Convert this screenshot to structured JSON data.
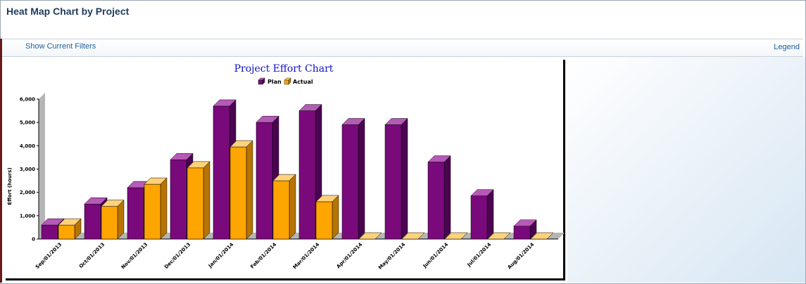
{
  "page": {
    "title": "Heat Map Chart by Project",
    "show_filters_label": "Show Current Filters",
    "legend_label": "Legend"
  },
  "colors": {
    "plan": "#7a0a7c",
    "actual": "#ffa500",
    "title": "#1010c8",
    "link": "#1b5e9c"
  },
  "chart_data": {
    "type": "bar",
    "title": "Project Effort Chart",
    "xlabel": "",
    "ylabel": "Effort (hours)",
    "ylim": [
      0,
      6000
    ],
    "yticks": [
      "0",
      "1,000",
      "2,000",
      "3,000",
      "4,000",
      "5,000",
      "6,000"
    ],
    "legend_position": "top-center",
    "grid": false,
    "categories": [
      "Sep/01/2013",
      "Oct/01/2013",
      "Nov/01/2013",
      "Dec/01/2013",
      "Jan/01/2014",
      "Feb/01/2014",
      "Mar/01/2014",
      "Apr/01/2014",
      "May/01/2014",
      "Jun/01/2014",
      "Jul/01/2014",
      "Aug/01/2014"
    ],
    "series": [
      {
        "name": "Plan",
        "values": [
          600,
          1500,
          2200,
          3400,
          5700,
          5000,
          5500,
          4900,
          4900,
          3300,
          1850,
          550
        ]
      },
      {
        "name": "Actual",
        "values": [
          600,
          1400,
          2350,
          3050,
          3950,
          2500,
          1600,
          0,
          0,
          0,
          0,
          0
        ]
      }
    ]
  }
}
